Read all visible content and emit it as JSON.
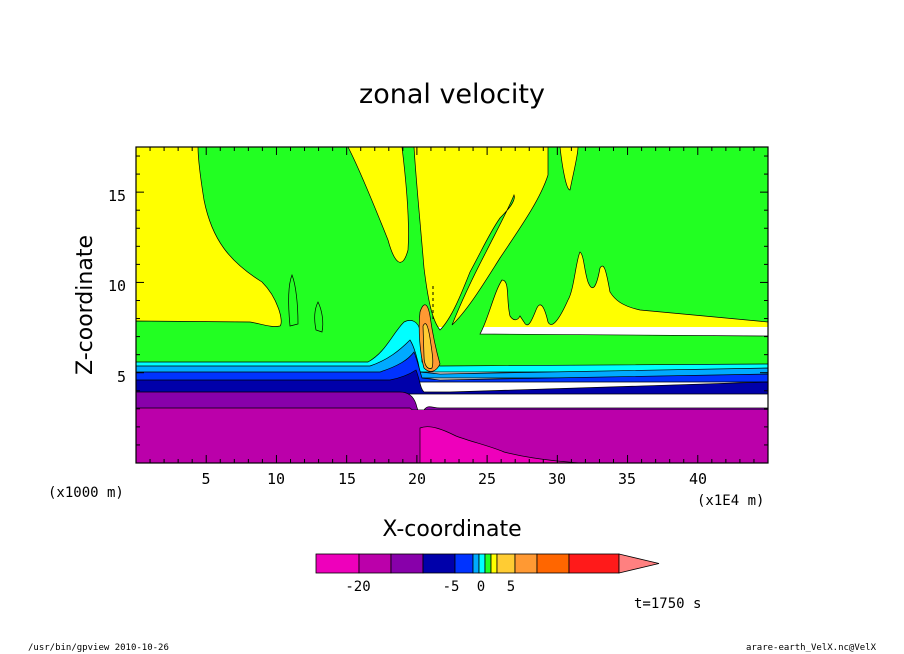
{
  "chart_data": {
    "type": "contour",
    "title": "zonal velocity",
    "xlabel": "X-coordinate",
    "ylabel": "Z-coordinate",
    "x_unit_label": "(x1000 m)",
    "x_scale_label": "(x1E4 m)",
    "xlim": [
      0,
      45
    ],
    "ylim": [
      0,
      17.5
    ],
    "x_ticks": [
      "5",
      "10",
      "15",
      "20",
      "25",
      "30",
      "35",
      "40"
    ],
    "y_ticks": [
      "5",
      "10",
      "15"
    ],
    "colorbar": {
      "tick_labels": [
        "-20",
        "-5",
        "0",
        "5"
      ],
      "colors": [
        "#ee00bb",
        "#bb00aa",
        "#8800aa",
        "#0000aa",
        "#0033ff",
        "#00aaff",
        "#00ffff",
        "#22ff22",
        "#ffff00",
        "#ffcc33",
        "#ff9933",
        "#ff6600",
        "#ff1a1a",
        "#ff8080"
      ]
    },
    "time_label": "t=1750 s"
  },
  "footer": {
    "left": "/usr/bin/gpview   2010-10-26",
    "right": "arare-earth_VelX.nc@VelX"
  }
}
